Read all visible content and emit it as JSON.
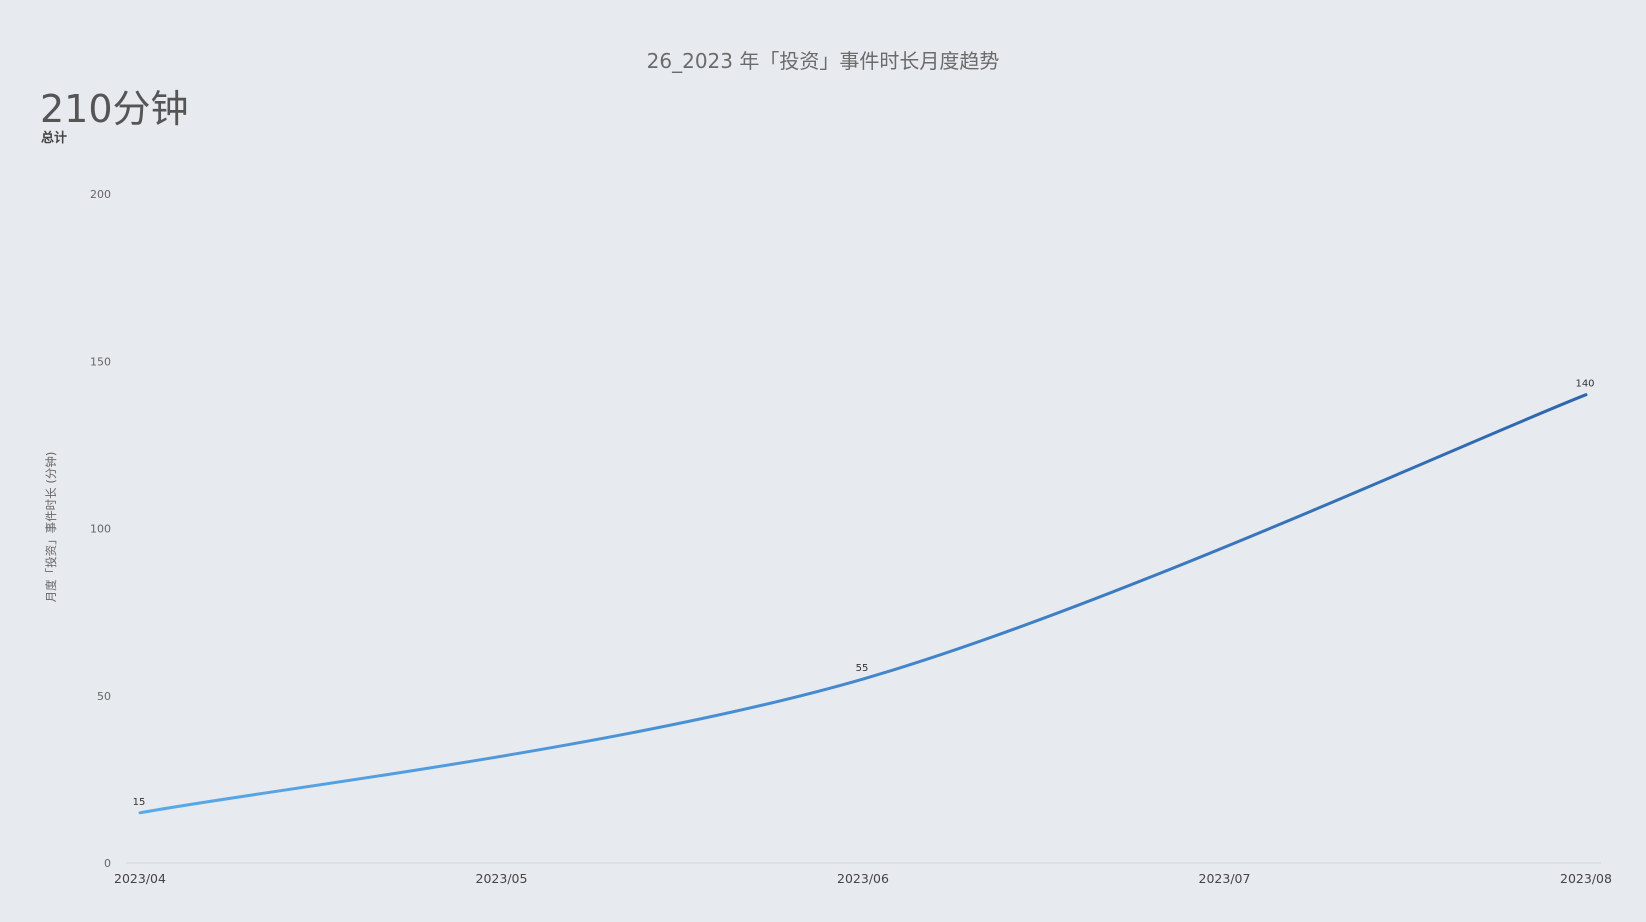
{
  "chart_data": {
    "type": "line",
    "title": "26_2023 年「投资」事件时长月度趋势",
    "summary": {
      "value": "210分钟",
      "label": "总计"
    },
    "x": [
      "2023/04",
      "2023/05",
      "2023/06",
      "2023/07",
      "2023/08"
    ],
    "ylabel": "月度「投资」事件时长 (分钟)",
    "ylim": [
      0,
      200
    ],
    "yticks": [
      0,
      50,
      100,
      150,
      200
    ],
    "series": [
      {
        "points": [
          {
            "x": "2023/04",
            "y": 15,
            "label": "15"
          },
          {
            "x": "2023/06",
            "y": 55,
            "label": "55"
          },
          {
            "x": "2023/08",
            "y": 140,
            "label": "140"
          }
        ]
      }
    ],
    "colors": {
      "line_start": "#5aaaea",
      "line_end": "#2f65ad",
      "axis": "#d3d7dc"
    },
    "grid": false,
    "legend": "none"
  }
}
